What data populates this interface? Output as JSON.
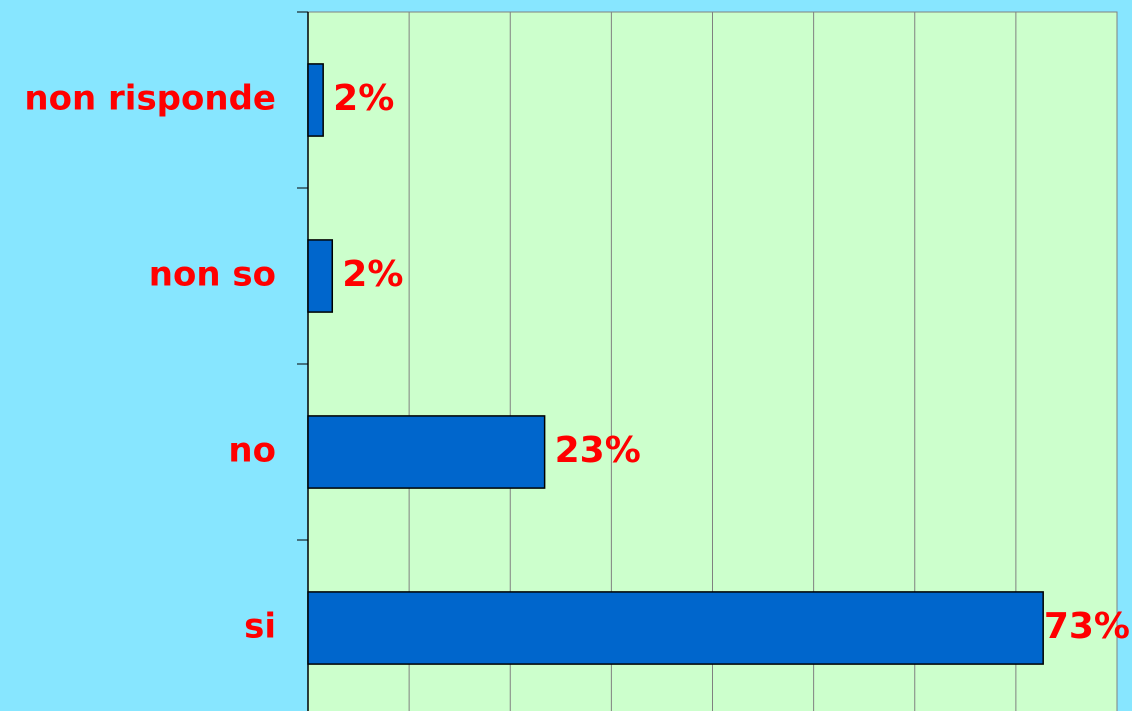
{
  "chart_data": {
    "type": "bar",
    "orientation": "horizontal",
    "categories": [
      "non risponde",
      "non so",
      "no",
      "si"
    ],
    "values": [
      1.5,
      2.4,
      23.4,
      72.7
    ],
    "value_labels": [
      "2%",
      "2%",
      "23%",
      "73%"
    ],
    "color": "#0066cc",
    "xlim": [
      0,
      80
    ],
    "xticks": [
      0,
      10,
      20,
      30,
      40,
      50,
      60,
      70,
      80
    ],
    "grid": true
  }
}
